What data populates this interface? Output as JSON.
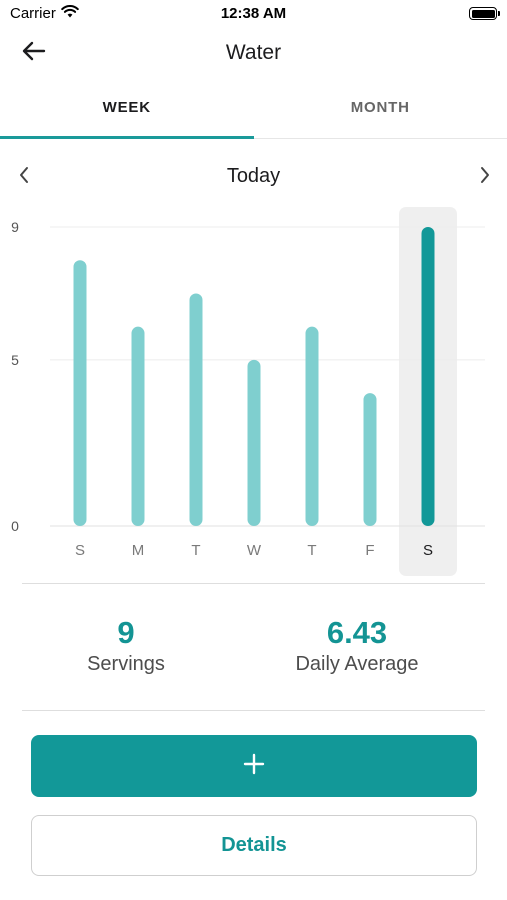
{
  "status_bar": {
    "carrier": "Carrier",
    "time": "12:38 AM"
  },
  "nav": {
    "title": "Water",
    "back_icon": "arrow-left-icon"
  },
  "tabs": [
    {
      "label": "WEEK",
      "active": true
    },
    {
      "label": "MONTH",
      "active": false
    }
  ],
  "date_nav": {
    "label": "Today"
  },
  "chart_data": {
    "type": "bar",
    "categories": [
      "S",
      "M",
      "T",
      "W",
      "T",
      "F",
      "S"
    ],
    "values": [
      8,
      6,
      7,
      5,
      6,
      4,
      9
    ],
    "highlighted_index": 6,
    "yticks": [
      0,
      5,
      9
    ],
    "ylim": [
      0,
      9
    ],
    "grid": true,
    "colors": {
      "bar": "#7fcfcf",
      "highlight_bar": "#129898",
      "highlight_bg": "#efefef"
    }
  },
  "stats": {
    "servings": {
      "value": "9",
      "label": "Servings"
    },
    "average": {
      "value": "6.43",
      "label": "Daily Average"
    }
  },
  "actions": {
    "add_icon": "plus-icon",
    "details_label": "Details"
  },
  "colors": {
    "accent": "#129898"
  }
}
